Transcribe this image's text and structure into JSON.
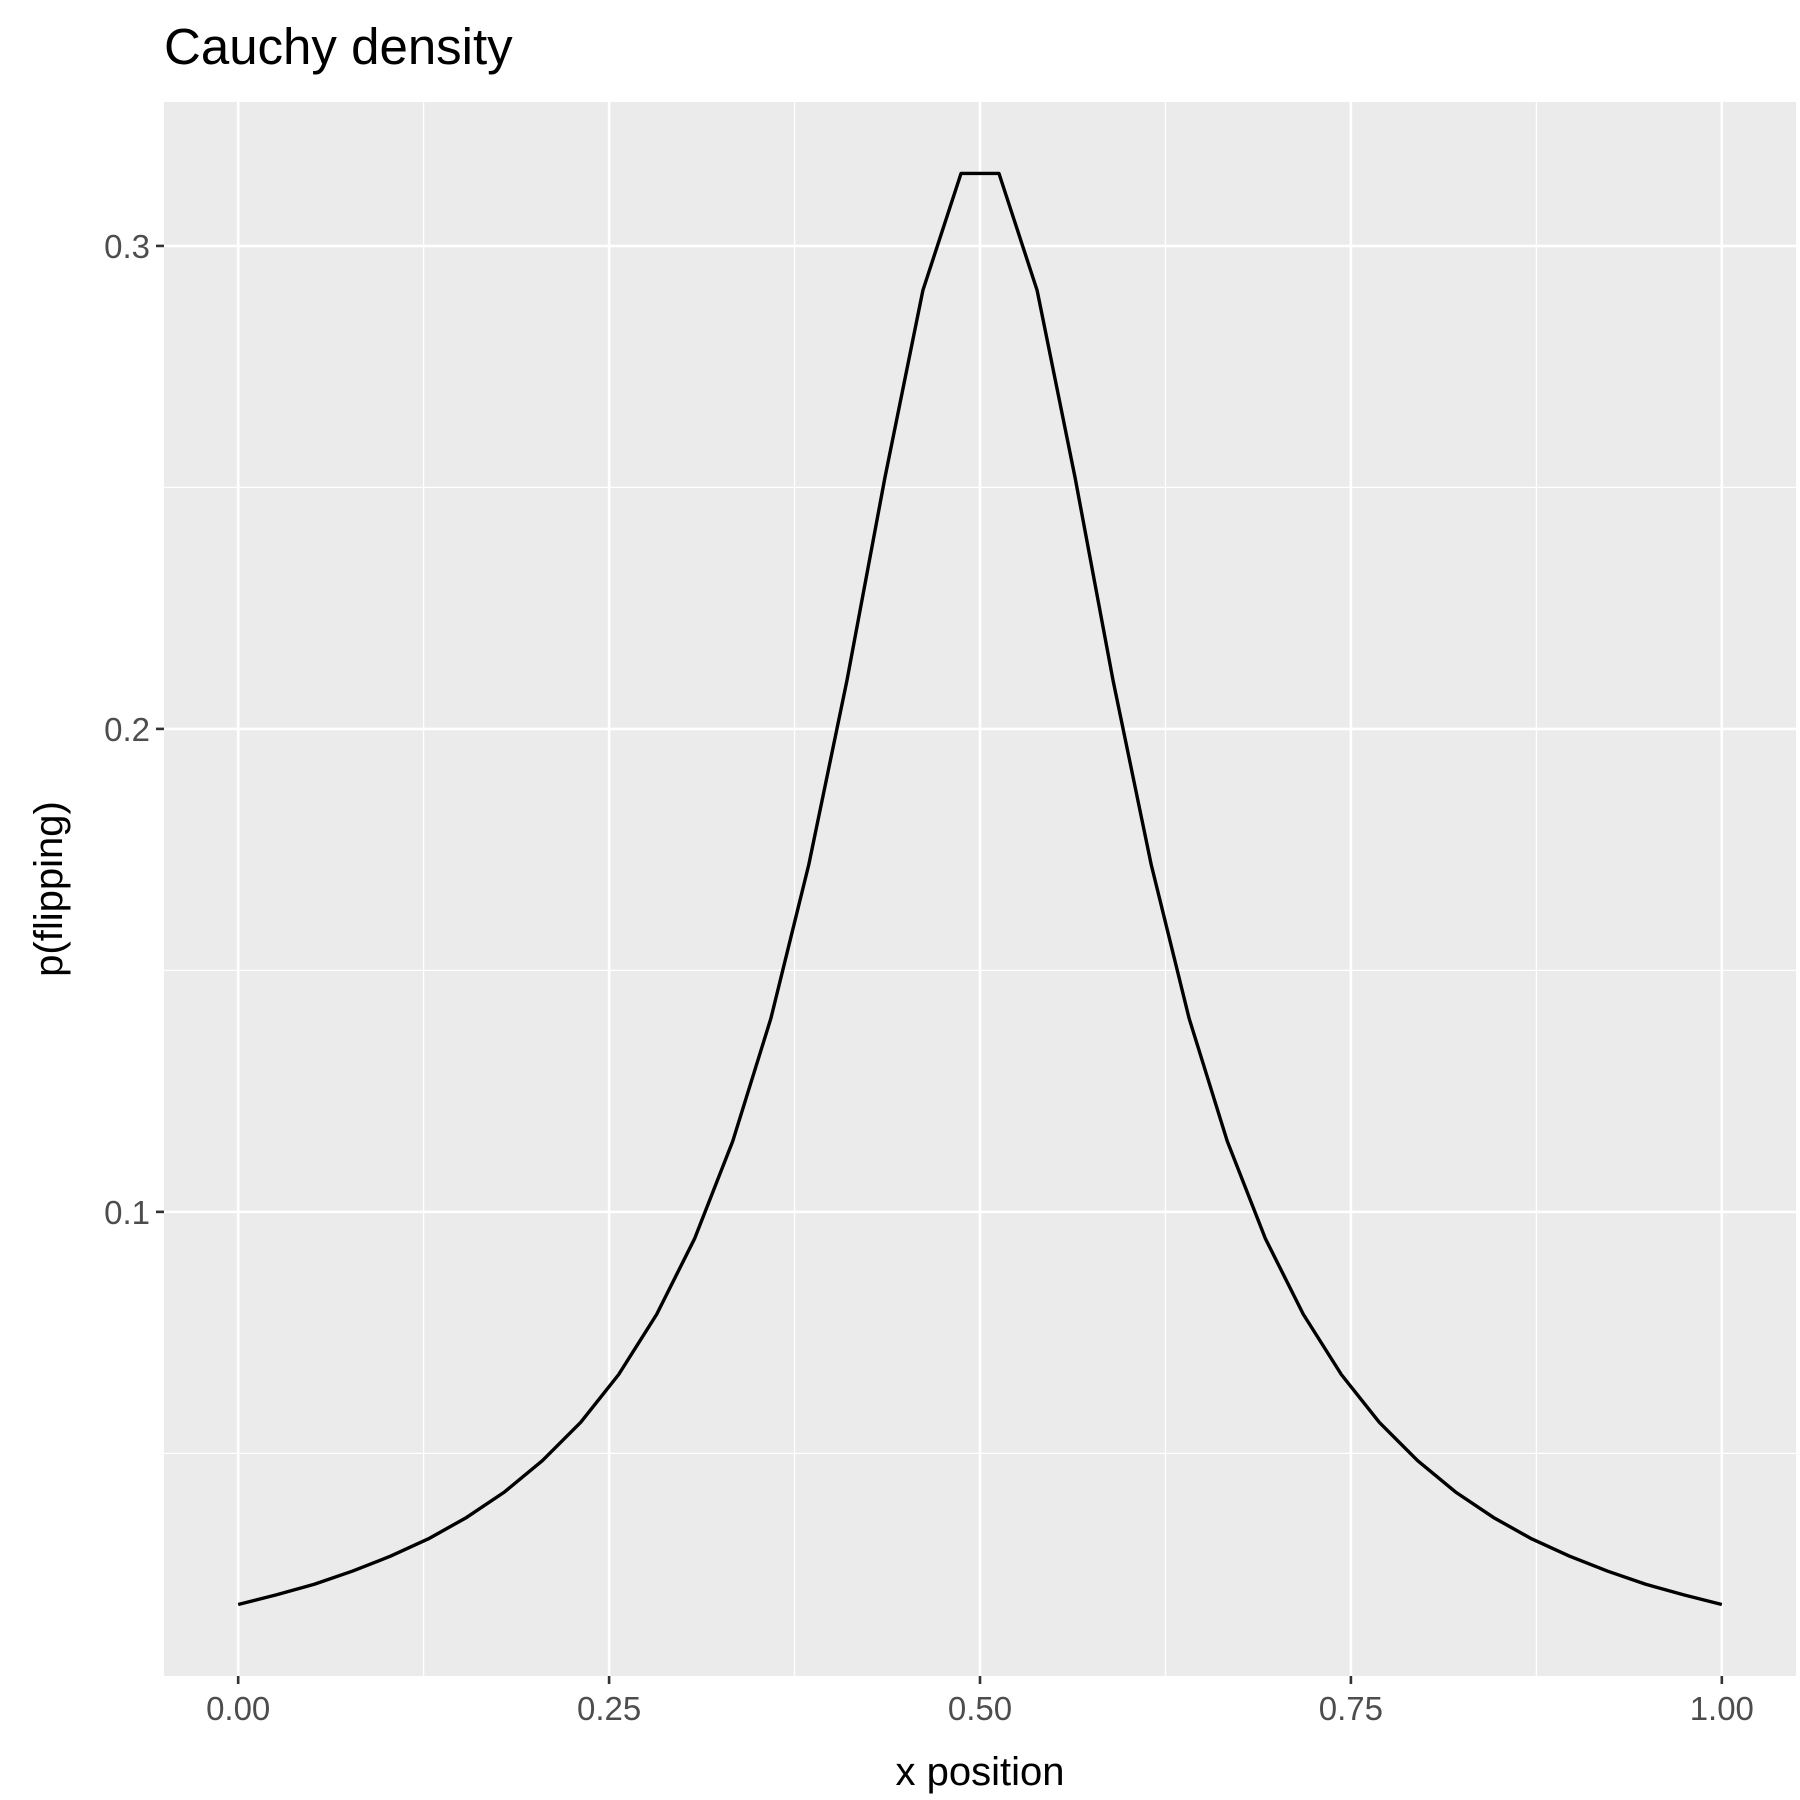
{
  "chart_data": {
    "type": "line",
    "title": "Cauchy density",
    "x_label": "x position",
    "y_label": "p(flipping)",
    "x": [
      0,
      0.0256,
      0.0513,
      0.0769,
      0.1026,
      0.1282,
      0.1538,
      0.1795,
      0.2051,
      0.2308,
      0.2564,
      0.2821,
      0.3077,
      0.3333,
      0.359,
      0.3846,
      0.4103,
      0.4359,
      0.4615,
      0.4872,
      0.5128,
      0.5385,
      0.5641,
      0.5897,
      0.6154,
      0.641,
      0.6667,
      0.6923,
      0.7179,
      0.7436,
      0.7692,
      0.7949,
      0.8205,
      0.8462,
      0.8718,
      0.8974,
      0.9231,
      0.9487,
      0.9744,
      1
    ],
    "series": [
      {
        "color": "#000000",
        "values": [
          0.0187,
          0.0207,
          0.0229,
          0.0256,
          0.0287,
          0.0323,
          0.0367,
          0.042,
          0.0485,
          0.0564,
          0.0663,
          0.0788,
          0.0945,
          0.1146,
          0.14,
          0.1719,
          0.21,
          0.252,
          0.2908,
          0.315,
          0.315,
          0.2908,
          0.252,
          0.21,
          0.1719,
          0.14,
          0.1146,
          0.0945,
          0.0788,
          0.0663,
          0.0564,
          0.0485,
          0.042,
          0.0367,
          0.0323,
          0.0287,
          0.0256,
          0.0229,
          0.0207,
          0.0187
        ]
      }
    ],
    "xlim": [
      -0.05,
      1.05
    ],
    "ylim": [
      0.0039,
      0.3298
    ],
    "xticks": [
      {
        "value": 0,
        "label": "0.00"
      },
      {
        "value": 0.25,
        "label": "0.25"
      },
      {
        "value": 0.5,
        "label": "0.50"
      },
      {
        "value": 0.75,
        "label": "0.75"
      },
      {
        "value": 1,
        "label": "1.00"
      }
    ],
    "yticks": [
      0.1,
      0.2,
      0.3
    ],
    "grid": true
  }
}
